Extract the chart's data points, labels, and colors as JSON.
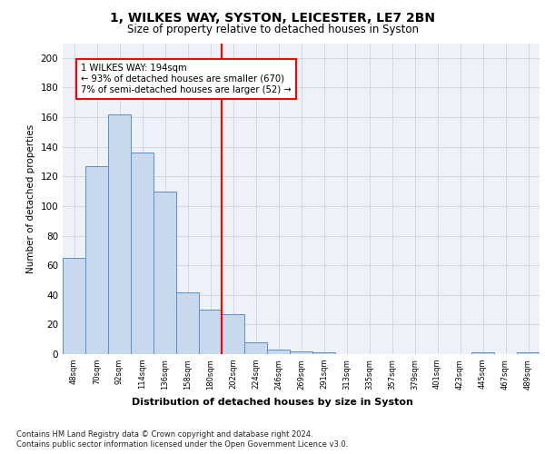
{
  "title_line1": "1, WILKES WAY, SYSTON, LEICESTER, LE7 2BN",
  "title_line2": "Size of property relative to detached houses in Syston",
  "xlabel": "Distribution of detached houses by size in Syston",
  "ylabel": "Number of detached properties",
  "bar_labels": [
    "48sqm",
    "70sqm",
    "92sqm",
    "114sqm",
    "136sqm",
    "158sqm",
    "180sqm",
    "202sqm",
    "224sqm",
    "246sqm",
    "269sqm",
    "291sqm",
    "313sqm",
    "335sqm",
    "357sqm",
    "379sqm",
    "401sqm",
    "423sqm",
    "445sqm",
    "467sqm",
    "489sqm"
  ],
  "bar_values": [
    65,
    127,
    162,
    136,
    110,
    42,
    30,
    27,
    8,
    3,
    2,
    1,
    0,
    0,
    0,
    0,
    0,
    0,
    1,
    0,
    1
  ],
  "bar_color": "#c9d9ed",
  "bar_edge_color": "#5b8fc9",
  "reference_line_x": 6.5,
  "ylim": [
    0,
    210
  ],
  "yticks": [
    0,
    20,
    40,
    60,
    80,
    100,
    120,
    140,
    160,
    180,
    200
  ],
  "grid_color": "#d0d8e8",
  "bg_color": "#eef2f8",
  "annotation_text": "1 WILKES WAY: 194sqm\n← 93% of detached houses are smaller (670)\n7% of semi-detached houses are larger (52) →",
  "footnote_line1": "Contains HM Land Registry data © Crown copyright and database right 2024.",
  "footnote_line2": "Contains public sector information licensed under the Open Government Licence v3.0."
}
